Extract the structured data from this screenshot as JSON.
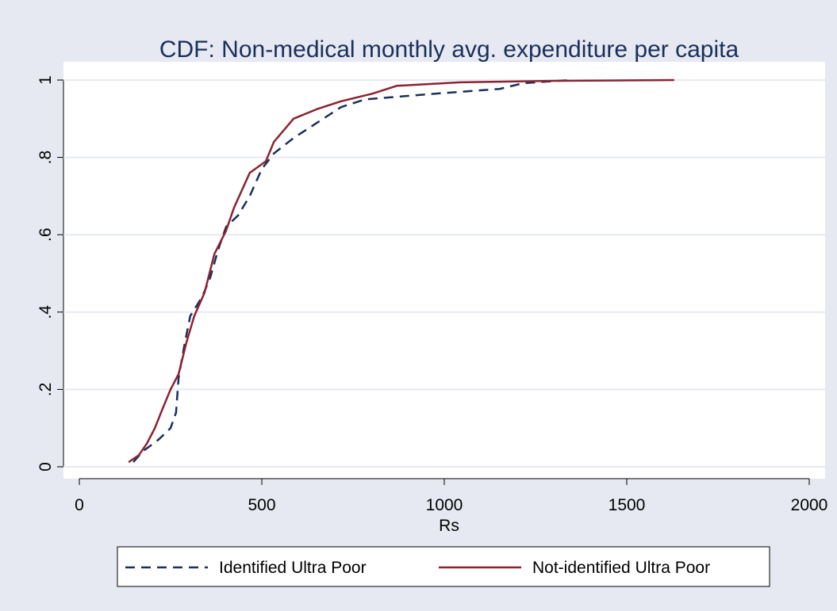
{
  "chart_data": {
    "type": "line",
    "title": "CDF: Non-medical monthly avg. expenditure per capita",
    "xlabel": "Rs",
    "xlim": [
      0,
      2000
    ],
    "xticks": [
      0,
      500,
      1000,
      1500,
      2000
    ],
    "ylim": [
      0,
      1
    ],
    "yticks": [
      0,
      {
        "value": 0.2,
        "label": ".2"
      },
      {
        "value": 0.4,
        "label": ".4"
      },
      {
        "value": 0.6,
        "label": ".6"
      },
      {
        "value": 0.8,
        "label": ".8"
      },
      1
    ],
    "grid": true,
    "legend": "bottom",
    "series": [
      {
        "name": "Identified Ultra Poor",
        "color": "#1a2f5a",
        "dash": "dashed",
        "x": [
          148,
          174,
          217,
          250,
          265,
          272,
          287,
          304,
          337,
          359,
          380,
          402,
          435,
          467,
          500,
          533,
          587,
          652,
          717,
          783,
          978,
          1152,
          1217,
          1348
        ],
        "values": [
          0.012,
          0.04,
          0.07,
          0.1,
          0.14,
          0.23,
          0.31,
          0.39,
          0.44,
          0.49,
          0.56,
          0.62,
          0.65,
          0.7,
          0.77,
          0.81,
          0.85,
          0.89,
          0.93,
          0.95,
          0.965,
          0.977,
          0.992,
          1.0
        ]
      },
      {
        "name": "Not-identified Ultra Poor",
        "color": "#8b2332",
        "dash": "solid",
        "x": [
          135,
          163,
          185,
          207,
          228,
          250,
          272,
          293,
          315,
          343,
          370,
          402,
          424,
          467,
          511,
          533,
          587,
          652,
          717,
          804,
          870,
          1043,
          1304,
          1630
        ],
        "values": [
          0.012,
          0.03,
          0.06,
          0.1,
          0.15,
          0.2,
          0.24,
          0.32,
          0.39,
          0.45,
          0.55,
          0.61,
          0.67,
          0.76,
          0.79,
          0.84,
          0.9,
          0.925,
          0.945,
          0.965,
          0.985,
          0.994,
          0.998,
          1.0
        ]
      }
    ]
  }
}
